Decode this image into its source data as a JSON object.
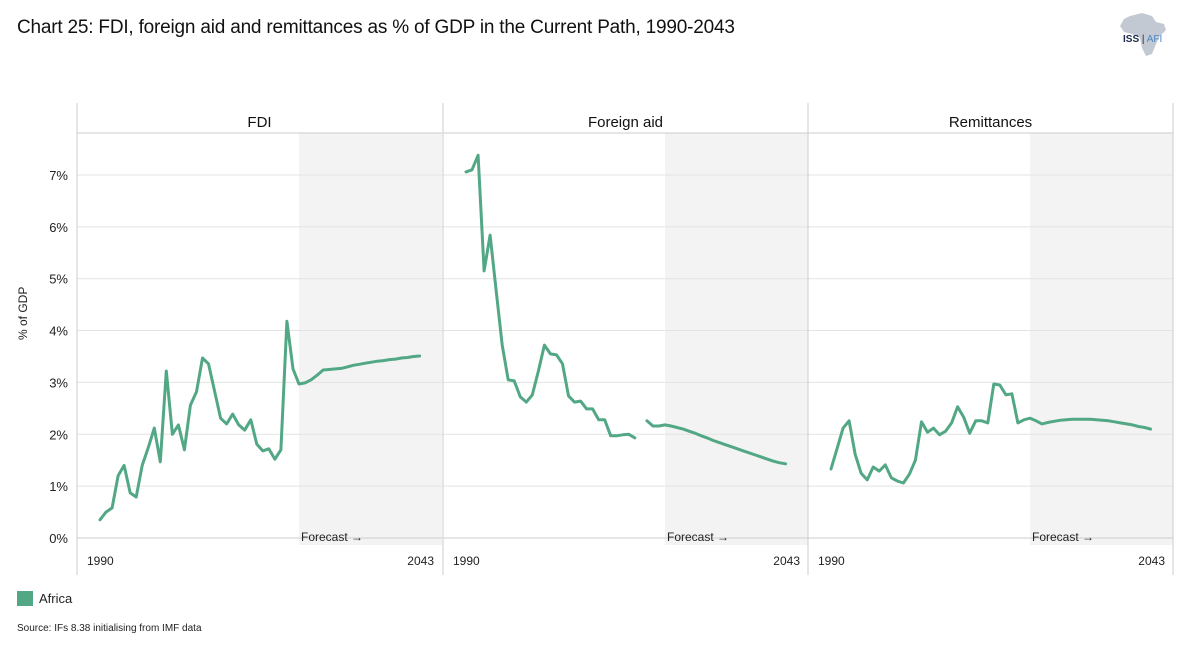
{
  "title": "Chart 25: FDI, foreign aid and remittances as % of GDP in the Current Path, 1990-2043",
  "logo": {
    "primary": "ISS",
    "secondary": "AFI",
    "icon": "africa-map-icon"
  },
  "legend": [
    {
      "label": "Africa",
      "color": "#52a885"
    }
  ],
  "source": "Source: IFs 8.38 initialising from IMF data",
  "colors": {
    "series": "#52a885",
    "forecast_bg": "#f3f3f3",
    "grid": "#e3e3e3",
    "border": "#cccccc"
  },
  "chart_data": {
    "type": "line",
    "title": "Chart 25: FDI, foreign aid and remittances as % of GDP in the Current Path, 1990-2043",
    "ylabel": "% of GDP",
    "ylim": [
      0,
      7.7
    ],
    "yticks": [
      0,
      1,
      2,
      3,
      4,
      5,
      6,
      7
    ],
    "ytick_labels": [
      "0%",
      "1%",
      "2%",
      "3%",
      "4%",
      "5%",
      "6%",
      "7%"
    ],
    "xlim": [
      1990,
      2043
    ],
    "xtick_labels": [
      "1990",
      "2043"
    ],
    "forecast_start": 2023,
    "forecast_label": "Forecast →",
    "grid": true,
    "legend_position": "bottom-left",
    "panels": [
      {
        "name": "FDI",
        "series": [
          {
            "name": "Africa",
            "x": [
              1990,
              1991,
              1992,
              1993,
              1994,
              1995,
              1996,
              1997,
              1998,
              1999,
              2000,
              2001,
              2002,
              2003,
              2004,
              2005,
              2006,
              2007,
              2008,
              2009,
              2010,
              2011,
              2012,
              2013,
              2014,
              2015,
              2016,
              2017,
              2018,
              2019,
              2020,
              2021,
              2022,
              2023,
              2024,
              2025,
              2026,
              2027,
              2028,
              2029,
              2030,
              2031,
              2032,
              2033,
              2034,
              2035,
              2036,
              2037,
              2038,
              2039,
              2040,
              2041,
              2042,
              2043
            ],
            "values": [
              0.35,
              0.5,
              0.58,
              1.2,
              1.4,
              0.87,
              0.79,
              1.4,
              1.74,
              2.12,
              1.47,
              3.22,
              2.0,
              2.18,
              1.7,
              2.56,
              2.82,
              3.47,
              3.36,
              2.83,
              2.31,
              2.2,
              2.39,
              2.18,
              2.08,
              2.28,
              1.81,
              1.68,
              1.72,
              1.52,
              1.7,
              4.18,
              3.26,
              2.97,
              2.99,
              3.05,
              3.14,
              3.24,
              3.25,
              3.26,
              3.27,
              3.3,
              3.33,
              3.35,
              3.37,
              3.39,
              3.41,
              3.42,
              3.44,
              3.45,
              3.47,
              3.48,
              3.5,
              3.51
            ]
          }
        ]
      },
      {
        "name": "Foreign aid",
        "series": [
          {
            "name": "Africa",
            "segments": [
              {
                "x": [
                  1990,
                  1991,
                  1992,
                  1993,
                  1994,
                  1995,
                  1996,
                  1997,
                  1998,
                  1999,
                  2000,
                  2001,
                  2002,
                  2003,
                  2004,
                  2005,
                  2006,
                  2007,
                  2008,
                  2009,
                  2010,
                  2011,
                  2012,
                  2013,
                  2014,
                  2015,
                  2016,
                  2017,
                  2018
                ],
                "values": [
                  7.06,
                  7.1,
                  7.38,
                  5.15,
                  5.84,
                  4.78,
                  3.72,
                  3.05,
                  3.03,
                  2.72,
                  2.62,
                  2.76,
                  3.22,
                  3.72,
                  3.55,
                  3.53,
                  3.36,
                  2.74,
                  2.62,
                  2.64,
                  2.49,
                  2.49,
                  2.28,
                  2.28,
                  1.97,
                  1.97,
                  1.99,
                  2.0,
                  1.93
                ]
              },
              {
                "x": [
                  2020,
                  2021,
                  2022,
                  2023,
                  2024,
                  2025,
                  2026,
                  2027,
                  2028,
                  2029,
                  2030,
                  2031,
                  2032,
                  2033,
                  2034,
                  2035,
                  2036,
                  2037,
                  2038,
                  2039,
                  2040,
                  2041,
                  2042,
                  2043
                ],
                "values": [
                  2.26,
                  2.16,
                  2.16,
                  2.18,
                  2.16,
                  2.13,
                  2.1,
                  2.06,
                  2.02,
                  1.97,
                  1.93,
                  1.88,
                  1.84,
                  1.8,
                  1.76,
                  1.72,
                  1.68,
                  1.64,
                  1.6,
                  1.56,
                  1.52,
                  1.48,
                  1.45,
                  1.43
                ]
              }
            ]
          }
        ]
      },
      {
        "name": "Remittances",
        "series": [
          {
            "name": "Africa",
            "x": [
              1990,
              1991,
              1992,
              1993,
              1994,
              1995,
              1996,
              1997,
              1998,
              1999,
              2000,
              2001,
              2002,
              2003,
              2004,
              2005,
              2006,
              2007,
              2008,
              2009,
              2010,
              2011,
              2012,
              2013,
              2014,
              2015,
              2016,
              2017,
              2018,
              2019,
              2020,
              2021,
              2022,
              2023,
              2024,
              2025,
              2026,
              2027,
              2028,
              2029,
              2030,
              2031,
              2032,
              2033,
              2034,
              2035,
              2036,
              2037,
              2038,
              2039,
              2040,
              2041,
              2042,
              2043
            ],
            "values": [
              1.33,
              1.72,
              2.12,
              2.26,
              1.62,
              1.25,
              1.12,
              1.37,
              1.29,
              1.41,
              1.16,
              1.1,
              1.06,
              1.23,
              1.5,
              2.24,
              2.04,
              2.12,
              1.99,
              2.06,
              2.22,
              2.53,
              2.33,
              2.02,
              2.26,
              2.26,
              2.22,
              2.97,
              2.95,
              2.76,
              2.78,
              2.22,
              2.28,
              2.31,
              2.26,
              2.2,
              2.23,
              2.25,
              2.27,
              2.28,
              2.29,
              2.29,
              2.29,
              2.29,
              2.28,
              2.27,
              2.26,
              2.24,
              2.22,
              2.2,
              2.18,
              2.15,
              2.13,
              2.1
            ]
          }
        ]
      }
    ]
  }
}
